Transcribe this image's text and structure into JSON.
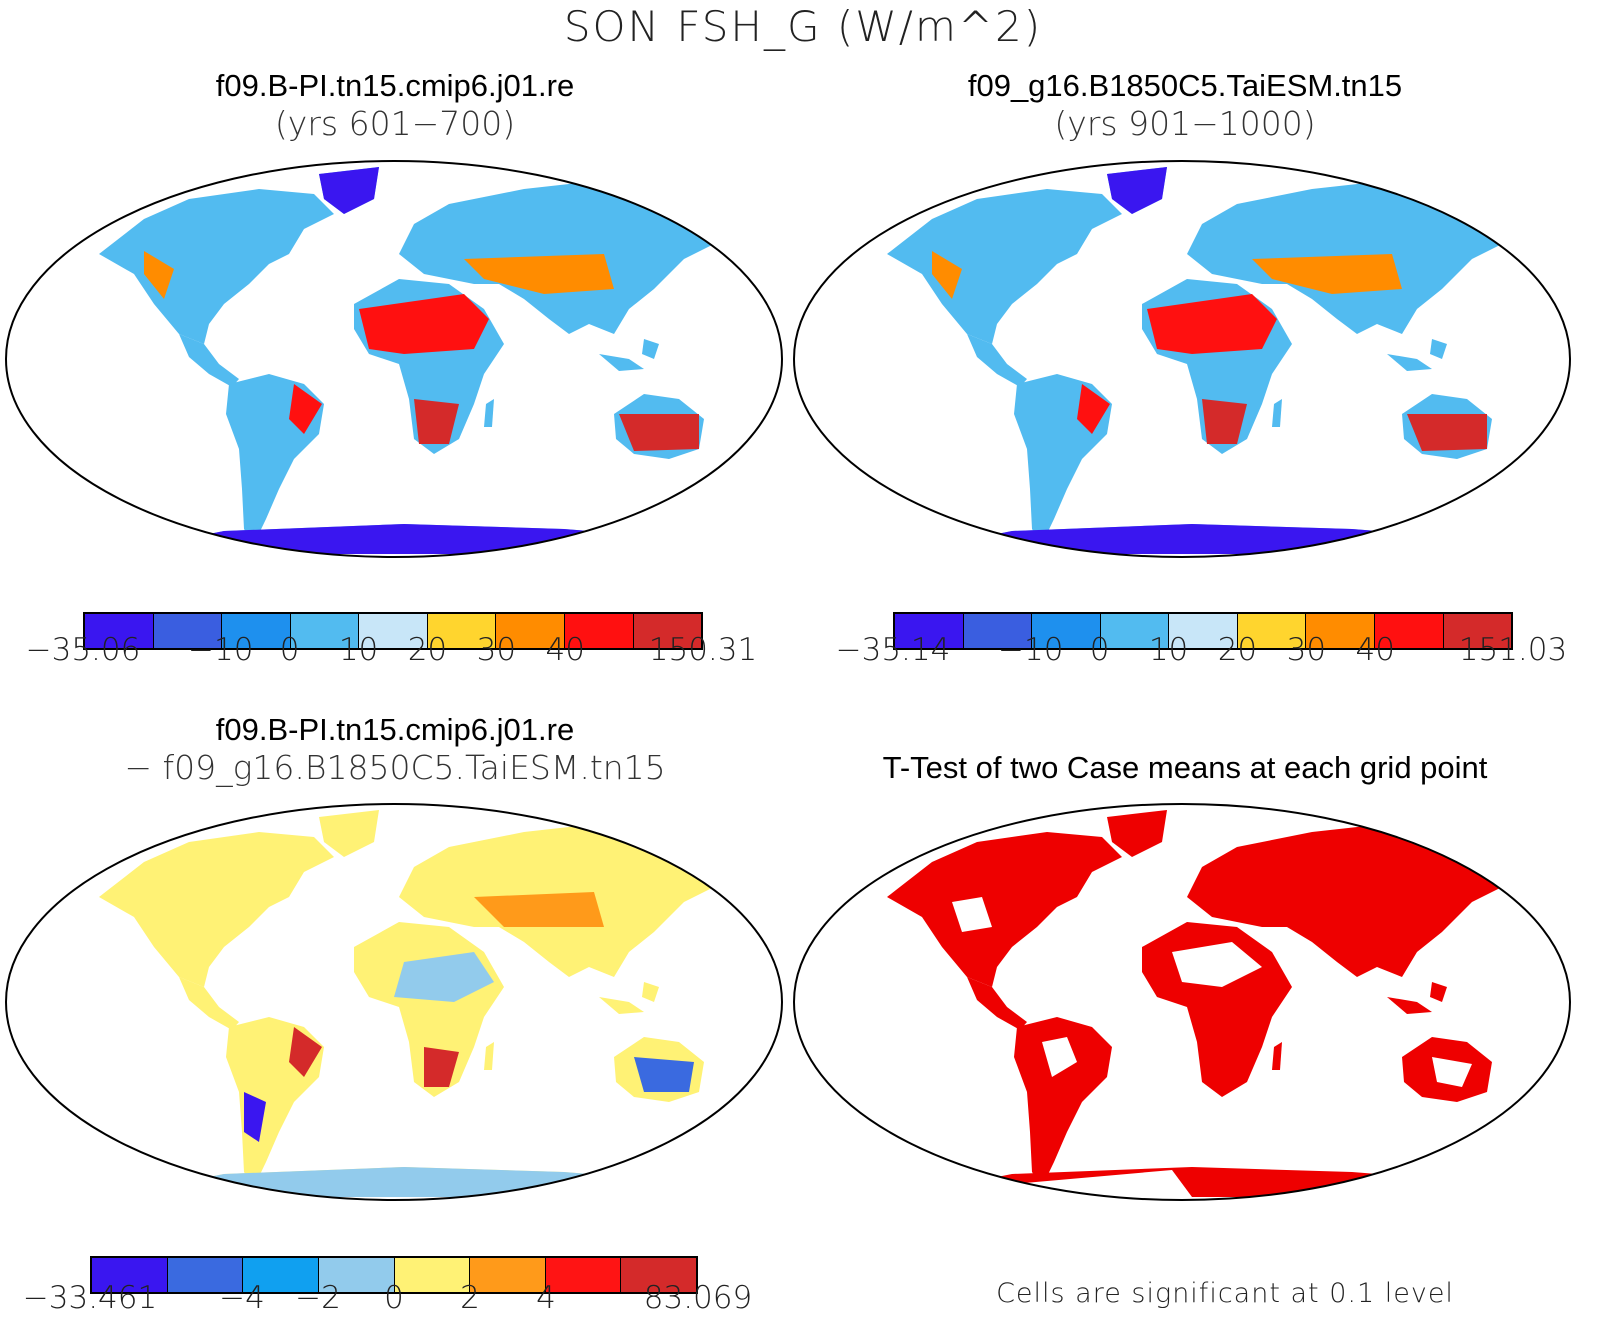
{
  "figure": {
    "title": "SON FSH_G (W/m^2)"
  },
  "panels": {
    "top_left": {
      "title_line1": "f09.B-PI.tn15.cmip6.j01.re",
      "title_line2": "(yrs 601−700)",
      "colorbar": {
        "colors": [
          "#3a16f0",
          "#3a5ee0",
          "#1e90ee",
          "#52bbf0",
          "#c8e6f8",
          "#ffd52e",
          "#ff8c00",
          "#ff1010",
          "#d42a2a"
        ],
        "ticks": [
          {
            "label": "−35.06",
            "pos": 0
          },
          {
            "label": "−10",
            "pos": 2
          },
          {
            "label": "0",
            "pos": 3
          },
          {
            "label": "10",
            "pos": 4
          },
          {
            "label": "20",
            "pos": 5
          },
          {
            "label": "30",
            "pos": 6
          },
          {
            "label": "40",
            "pos": 7
          },
          {
            "label": "150.31",
            "pos": 9
          }
        ]
      }
    },
    "top_right": {
      "title_line1": "f09_g16.B1850C5.TaiESM.tn15",
      "title_line2": "(yrs 901−1000)",
      "colorbar": {
        "colors": [
          "#3a16f0",
          "#3a5ee0",
          "#1e90ee",
          "#52bbf0",
          "#c8e6f8",
          "#ffd52e",
          "#ff8c00",
          "#ff1010",
          "#d42a2a"
        ],
        "ticks": [
          {
            "label": "−35.14",
            "pos": 0
          },
          {
            "label": "−10",
            "pos": 2
          },
          {
            "label": "0",
            "pos": 3
          },
          {
            "label": "10",
            "pos": 4
          },
          {
            "label": "20",
            "pos": 5
          },
          {
            "label": "30",
            "pos": 6
          },
          {
            "label": "40",
            "pos": 7
          },
          {
            "label": "151.03",
            "pos": 9
          }
        ]
      }
    },
    "bottom_left": {
      "title_line1": "f09.B-PI.tn15.cmip6.j01.re",
      "title_line2": "− f09_g16.B1850C5.TaiESM.tn15",
      "colorbar": {
        "colors": [
          "#3a16f0",
          "#3a6ae0",
          "#10a0f0",
          "#92cbec",
          "#fff275",
          "#ff9a1a",
          "#ff1414",
          "#d42a2a"
        ],
        "ticks": [
          {
            "label": "−33.461",
            "pos": 0
          },
          {
            "label": "−4",
            "pos": 2
          },
          {
            "label": "−2",
            "pos": 3
          },
          {
            "label": "0",
            "pos": 4
          },
          {
            "label": "2",
            "pos": 5
          },
          {
            "label": "4",
            "pos": 6
          },
          {
            "label": "83.069",
            "pos": 8
          }
        ]
      }
    },
    "bottom_right": {
      "title": "T-Test of two Case means at each grid point",
      "note": "Cells are significant at 0.1 level",
      "significant_color": "#ee0000"
    }
  }
}
